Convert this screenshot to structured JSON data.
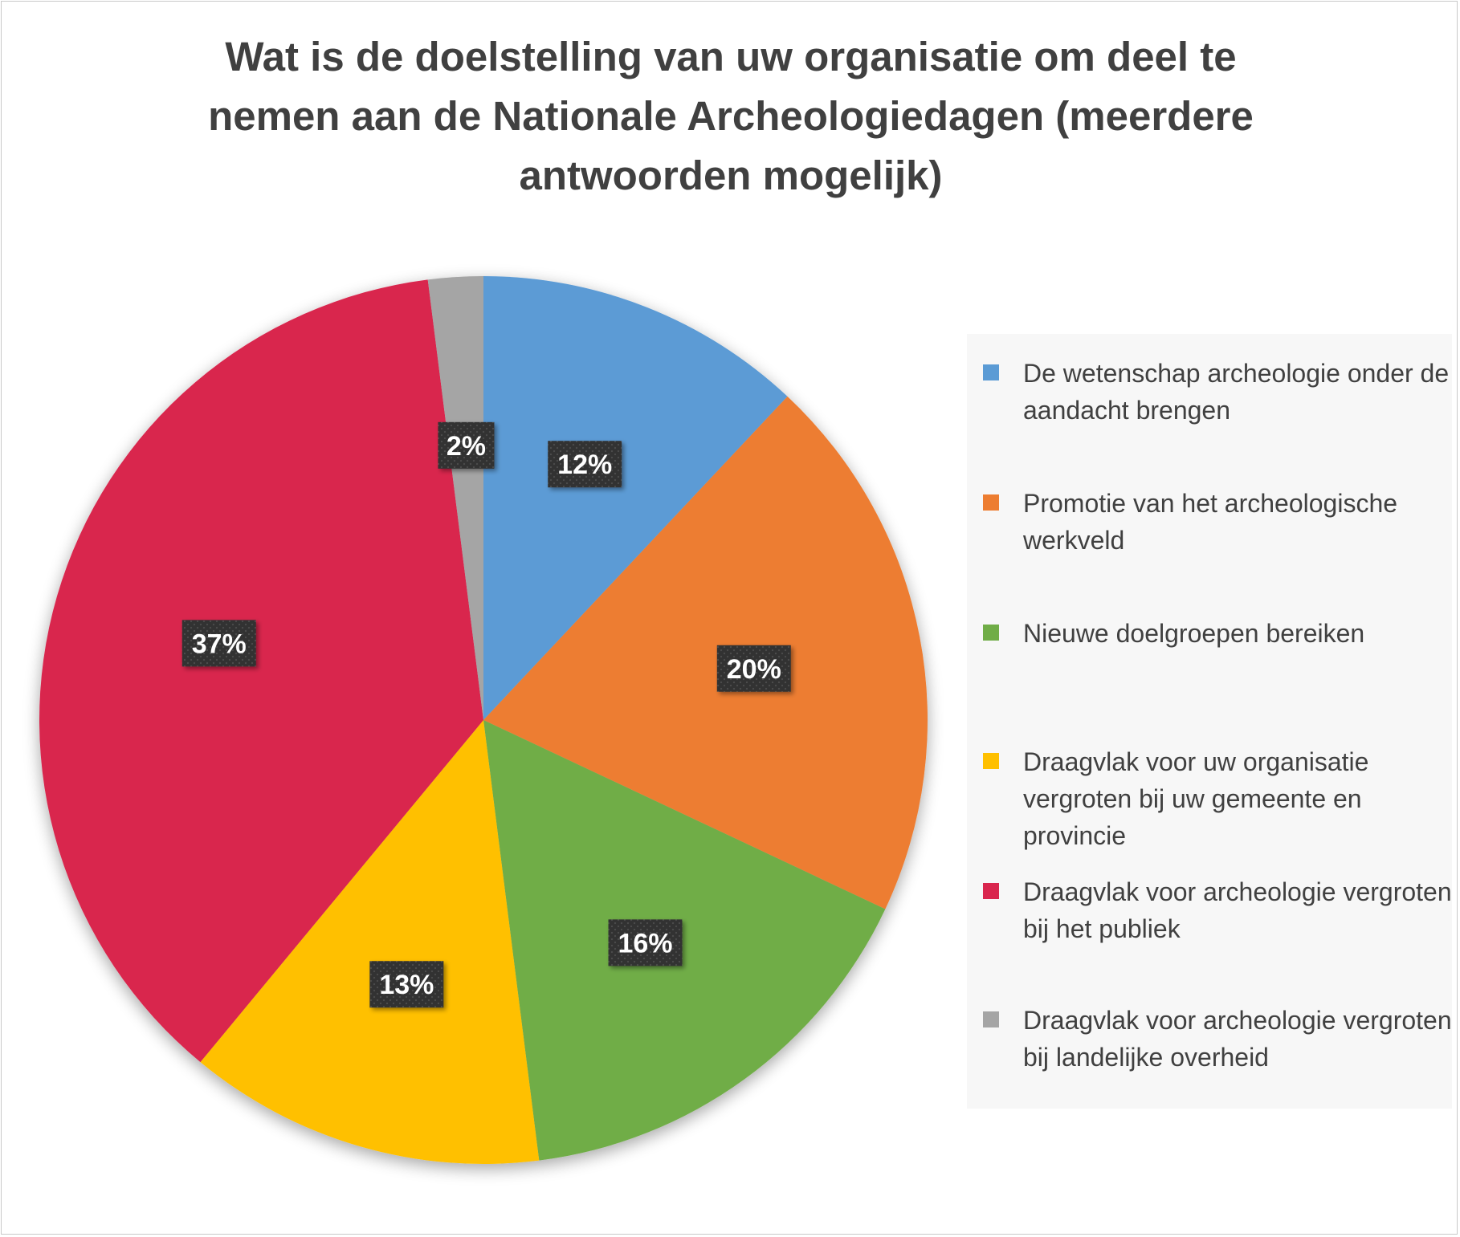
{
  "chart_data": {
    "type": "pie",
    "title": "Wat is de doelstelling van uw organisatie om deel te nemen aan de Nationale Archeologiedagen (meerdere antwoorden mogelijk)",
    "title_lines": [
      "Wat is de doelstelling van uw organisatie om deel te",
      "nemen aan de Nationale Archeologiedagen (meerdere",
      "antwoorden mogelijk)"
    ],
    "legend_position": "right",
    "categories": [
      "De wetenschap archeologie onder de aandacht brengen",
      "Promotie van het archeologische werkveld",
      "Nieuwe doelgroepen bereiken",
      "Draagvlak voor uw organisatie vergroten bij uw gemeente en provincie",
      "Draagvlak voor archeologie vergroten bij het publiek",
      "Draagvlak voor archeologie vergroten bij landelijke overheid"
    ],
    "values": [
      12,
      20,
      16,
      13,
      37,
      2
    ],
    "data_labels": [
      "12%",
      "20%",
      "16%",
      "13%",
      "37%",
      "2%"
    ],
    "colors": [
      "#5b9bd5",
      "#ed7d31",
      "#70ad47",
      "#ffc000",
      "#d9264e",
      "#a5a5a5"
    ],
    "start_angle_deg": 0,
    "direction": "clockwise"
  }
}
